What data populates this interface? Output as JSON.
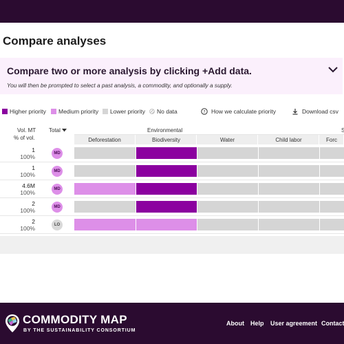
{
  "page": {
    "title": "Compare analyses"
  },
  "banner": {
    "title": "Compare two or more analysis by clicking +Add data.",
    "subtitle": "You will then be prompted to select a past analysis, a commodity, and optionally a supply."
  },
  "legend": {
    "items": [
      {
        "label": "Higher priority",
        "color": "#8b009f"
      },
      {
        "label": "Medium priority",
        "color": "#dd8fe8"
      },
      {
        "label": "Lower priority",
        "color": "#d5d5d5"
      },
      {
        "label": "No data"
      }
    ],
    "how_label": "How we calculate priority",
    "download_label": "Download csv"
  },
  "table": {
    "vol_header": "Vol. MT",
    "vol_subheader": "% of vol.",
    "total_header": "Total",
    "groups": [
      {
        "label": "Environmental"
      },
      {
        "label": "S"
      }
    ],
    "columns": [
      "Deforestation",
      "Biodiversity",
      "Water",
      "Child labor",
      "Forc"
    ],
    "rows": [
      {
        "vol": "1",
        "pct": "100%",
        "badge": "MD",
        "levels": [
          "low",
          "high",
          "low",
          "low",
          "low"
        ]
      },
      {
        "vol": "1",
        "pct": "100%",
        "badge": "MD",
        "levels": [
          "low",
          "high",
          "low",
          "low",
          "low"
        ]
      },
      {
        "vol": "4.6M",
        "pct": "100%",
        "badge": "MD",
        "levels": [
          "medium",
          "high",
          "low",
          "low",
          "low"
        ]
      },
      {
        "vol": "2",
        "pct": "100%",
        "badge": "MD",
        "levels": [
          "low",
          "high",
          "low",
          "low",
          "low"
        ]
      },
      {
        "vol": "2",
        "pct": "100%",
        "badge": "LO",
        "levels": [
          "medium",
          "medium",
          "low",
          "low",
          "low"
        ]
      }
    ]
  },
  "colors": {
    "high": "#8b009f",
    "medium": "#dd8fe8",
    "low": "#d5d5d5",
    "badge_md": "#dd8fe8",
    "badge_lo": "#d9d9d9",
    "brand_dark": "#2b0b30"
  },
  "footer": {
    "logo_title": "COMMODITY MAP",
    "logo_subtitle": "BY THE SUSTAINABILITY CONSORTIUM",
    "links": [
      "About",
      "Help",
      "User agreement",
      "Contact"
    ]
  }
}
